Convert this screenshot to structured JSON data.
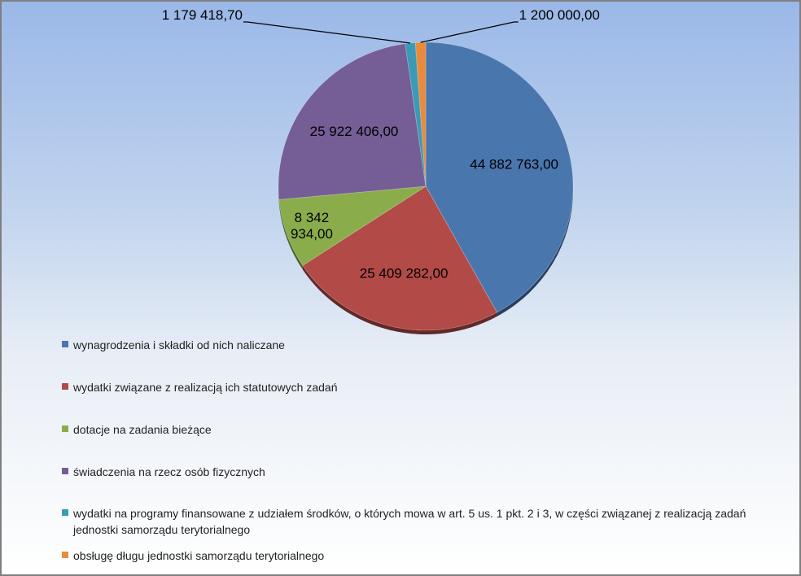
{
  "chart_data": {
    "type": "pie",
    "title": "",
    "slices": [
      {
        "label": "wynagrodzenia i składki od nich naliczane",
        "value": 44882763.0,
        "value_text": "44 882 763,00",
        "color": "#4a76ae"
      },
      {
        "label": "wydatki związane z realizacją ich statutowych zadań",
        "value": 25409282.0,
        "value_text": "25 409 282,00",
        "color": "#b24a47"
      },
      {
        "label": "dotacje na zadania bieżące",
        "value": 8342934.0,
        "value_text": "8 342 934,00",
        "color": "#8aac4b"
      },
      {
        "label": "świadczenia na rzecz osób fizycznych",
        "value": 25922406.0,
        "value_text": "25 922 406,00",
        "color": "#755d95"
      },
      {
        "label": "wydatki na programy finansowane z udziałem środków, o których mowa w art. 5 us. 1 pkt. 2 i 3, w części związanej z realizacją zadań jednostki samorządu terytorialnego",
        "value": 1179418.7,
        "value_text": "1 179 418,70",
        "color": "#3c9ab6"
      },
      {
        "label": "obsługę długu jednostki samorządu terytorialnego",
        "value": 1200000.0,
        "value_text": "1 200 000,00",
        "color": "#e88b3d"
      }
    ],
    "legend_position": "bottom-left"
  }
}
